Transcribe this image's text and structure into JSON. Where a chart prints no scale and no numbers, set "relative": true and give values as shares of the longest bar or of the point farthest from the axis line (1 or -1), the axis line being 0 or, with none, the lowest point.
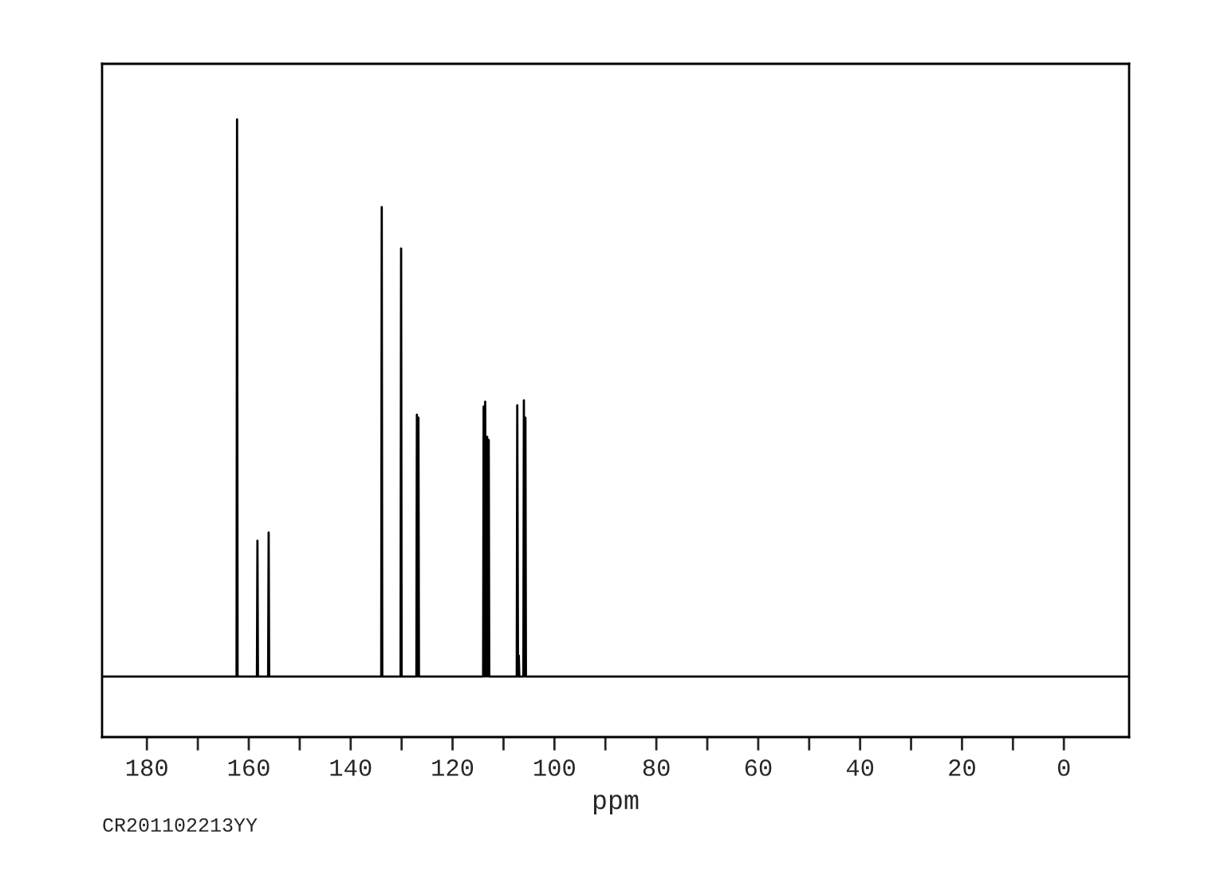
{
  "chart_data": {
    "type": "line",
    "relative": true,
    "xlabel": "ppm",
    "annotations": [
      "CR201102213YY"
    ],
    "xlim": [
      188.8,
      -12.8
    ],
    "xticks": [
      180,
      {
        "value": 170,
        "label": null
      },
      160,
      {
        "value": 150,
        "label": null
      },
      140,
      {
        "value": 130,
        "label": null
      },
      120,
      {
        "value": 110,
        "label": null
      },
      100,
      {
        "value": 90,
        "label": null
      },
      80,
      {
        "value": 70,
        "label": null
      },
      60,
      {
        "value": 50,
        "label": null
      },
      40,
      {
        "value": 30,
        "label": null
      },
      20,
      {
        "value": 10,
        "label": null
      },
      0
    ],
    "grid": false,
    "series": [
      {
        "color": "#000000",
        "x": [
          188.8,
          162.4,
          162.3,
          162.2,
          158.4,
          158.3,
          158.2,
          156.2,
          156.1,
          156.0,
          134.0,
          133.9,
          133.8,
          130.2,
          130.1,
          130.0,
          127.1,
          127.0,
          126.85,
          126.7,
          126.6,
          114.0,
          113.9,
          113.75,
          113.6,
          113.4,
          113.2,
          113.05,
          112.9,
          112.8,
          107.4,
          107.3,
          107.15,
          107.0,
          106.9,
          106.1,
          106.0,
          105.85,
          105.7,
          105.6,
          -12.8
        ],
        "values": [
          0.098,
          0.098,
          1.0,
          0.098,
          0.098,
          0.318,
          0.098,
          0.098,
          0.331,
          0.098,
          0.098,
          0.858,
          0.098,
          0.098,
          0.791,
          0.098,
          0.098,
          0.522,
          0.098,
          0.517,
          0.098,
          0.098,
          0.535,
          0.098,
          0.543,
          0.098,
          0.486,
          0.098,
          0.481,
          0.098,
          0.098,
          0.537,
          0.098,
          0.132,
          0.098,
          0.098,
          0.545,
          0.098,
          0.517,
          0.098,
          0.098
        ]
      }
    ]
  }
}
